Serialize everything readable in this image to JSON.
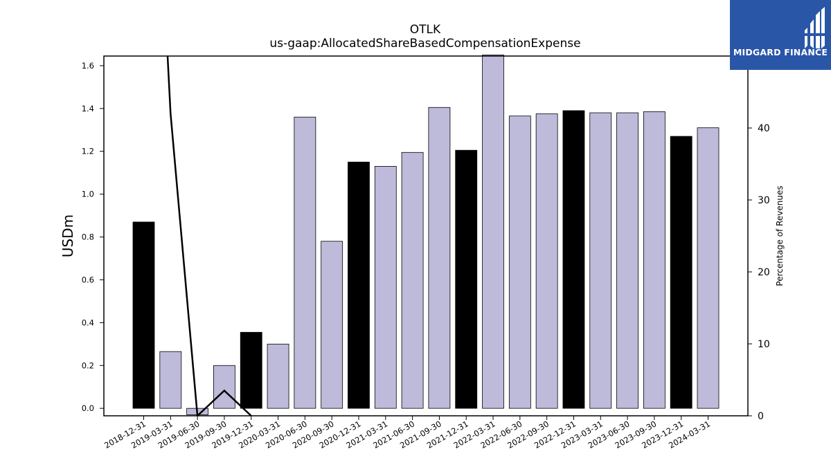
{
  "brand": {
    "name": "MIDGARD FINANCE",
    "color": "#2a56a8"
  },
  "chart_data": {
    "type": "bar",
    "title": "OTLK",
    "subtitle": "us-gaap:AllocatedShareBasedCompensationExpense",
    "ylabel": "USDm",
    "y2label": "Percentage of Revenues",
    "ylim": [
      -0.035,
      1.645
    ],
    "y2lim": [
      0,
      50
    ],
    "yticks": [
      "0.0",
      "0.2",
      "0.4",
      "0.6",
      "0.8",
      "1.0",
      "1.2",
      "1.4",
      "1.6"
    ],
    "y2ticks": [
      "0",
      "10",
      "20",
      "30",
      "40"
    ],
    "grid": false,
    "categories": [
      "2018-12-31",
      "2019-03-31",
      "2019-06-30",
      "2019-09-30",
      "2019-12-31",
      "2020-03-31",
      "2020-06-30",
      "2020-09-30",
      "2020-12-31",
      "2021-03-31",
      "2021-06-30",
      "2021-09-30",
      "2021-12-31",
      "2022-03-31",
      "2022-06-30",
      "2022-09-30",
      "2022-12-31",
      "2023-03-31",
      "2023-06-30",
      "2023-09-30",
      "2023-12-31",
      "2024-03-31"
    ],
    "series": [
      {
        "type": "bar",
        "axis": "left",
        "values": [
          0.87,
          0.265,
          -0.03,
          0.2,
          0.355,
          0.3,
          1.36,
          0.78,
          1.15,
          1.13,
          1.195,
          1.405,
          1.205,
          1.65,
          1.365,
          1.375,
          1.39,
          1.38,
          1.38,
          1.385,
          1.27,
          1.31
        ],
        "colors": [
          "#000000",
          "#bebada",
          "#bebada",
          "#bebada",
          "#000000",
          "#bebada",
          "#bebada",
          "#bebada",
          "#000000",
          "#bebada",
          "#bebada",
          "#bebada",
          "#000000",
          "#bebada",
          "#bebada",
          "#bebada",
          "#000000",
          "#bebada",
          "#bebada",
          "#bebada",
          "#000000",
          "#bebada"
        ]
      },
      {
        "type": "line",
        "axis": "right",
        "color": "#000000",
        "values": [
          null,
          42,
          0,
          3.5,
          0,
          null,
          null,
          null,
          null,
          null,
          null,
          null,
          null,
          null,
          null,
          null,
          null,
          null,
          null,
          null,
          null,
          null
        ],
        "note_clipped": "first point exceeds right-axis range (line enters from top)"
      }
    ]
  }
}
